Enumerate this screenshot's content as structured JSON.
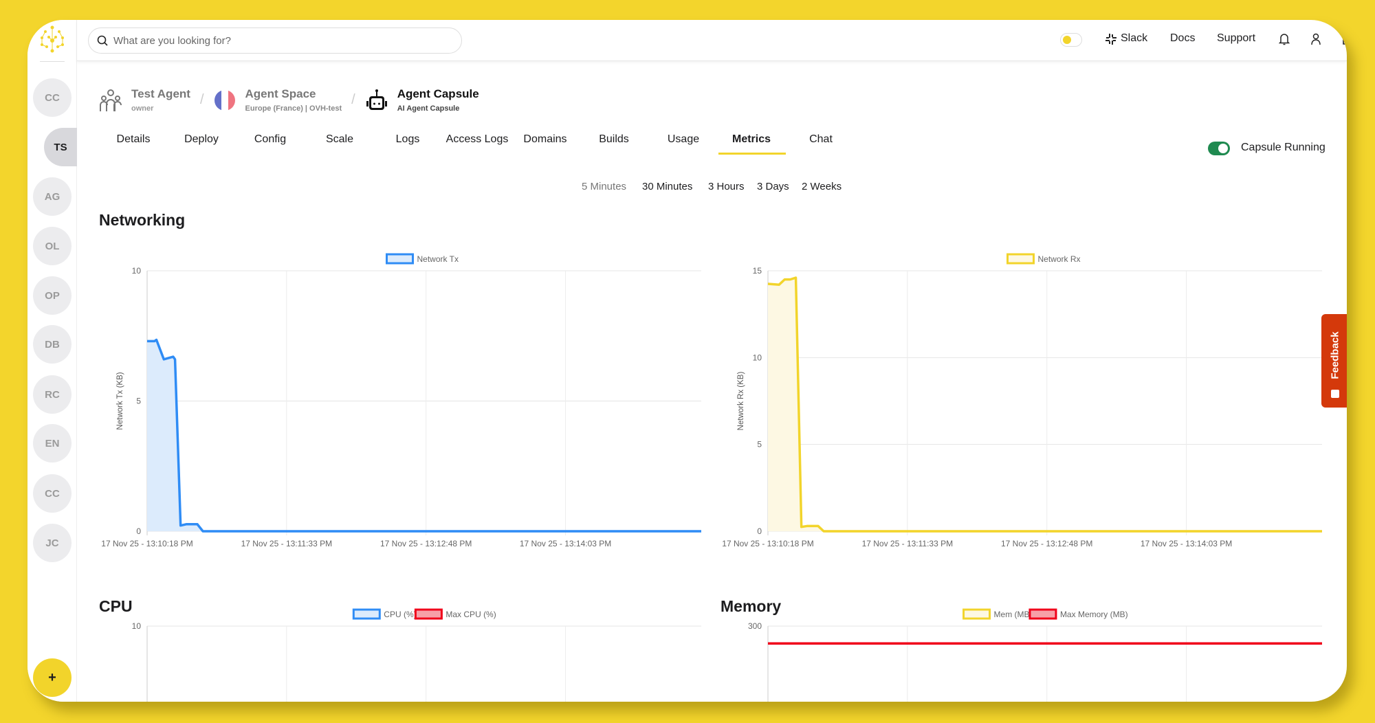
{
  "colors": {
    "background": "#f3d52c",
    "accent": "#f2d42b",
    "running": "#1f8a50",
    "feedback": "#d4390b",
    "tx": "#2f8cf5",
    "tx_fill": "#dcebfc",
    "rx": "#f2d42b",
    "rx_fill": "#fdf8e3",
    "max": "#f0001a",
    "max_fill": "#f7a0a8"
  },
  "search": {
    "placeholder": "What are you looking for?"
  },
  "topbar": {
    "slack": "Slack",
    "docs": "Docs",
    "support": "Support",
    "theme_toggle": "light"
  },
  "sidebar": {
    "avatars": [
      "CC",
      "TS",
      "AG",
      "OL",
      "OP",
      "DB",
      "RC",
      "EN",
      "CC",
      "JC"
    ],
    "active": "TS",
    "add": "+"
  },
  "breadcrumb": {
    "org": {
      "title": "Test Agent",
      "sub": "owner"
    },
    "space": {
      "title": "Agent Space",
      "sub": "Europe (France) | OVH-test"
    },
    "capsule": {
      "title": "Agent Capsule",
      "sub": "AI Agent Capsule"
    }
  },
  "tabs": [
    "Details",
    "Deploy",
    "Config",
    "Scale",
    "Logs",
    "Access Logs",
    "Domains",
    "Builds",
    "Usage",
    "Metrics",
    "Chat"
  ],
  "active_tab": "Metrics",
  "status": {
    "label": "Capsule Running",
    "on": true
  },
  "ranges": [
    "5 Minutes",
    "30 Minutes",
    "3 Hours",
    "3 Days",
    "2 Weeks"
  ],
  "sections": {
    "networking": "Networking",
    "cpu": "CPU",
    "memory": "Memory"
  },
  "feedback": "Feedback",
  "chart_data": [
    {
      "type": "area",
      "ylabel": "Network Tx (KB)",
      "ylim": [
        0,
        10
      ],
      "yticks": [
        0,
        5,
        10
      ],
      "xlim": [
        "13:10:18",
        "13:15:16"
      ],
      "xticks": [
        {
          "t": "13:10:18",
          "label": "17 Nov 25 - 13:10:18 PM"
        },
        {
          "t": "13:11:33",
          "label": "17 Nov 25 - 13:11:33 PM"
        },
        {
          "t": "13:12:48",
          "label": "17 Nov 25 - 13:12:48 PM"
        },
        {
          "t": "13:14:03",
          "label": "17 Nov 25 - 13:14:03 PM"
        }
      ],
      "grid": true,
      "legend": "top",
      "series": [
        {
          "name": "Network Tx",
          "color": "#2f8cf5",
          "fill": "#dcebfc",
          "points": [
            [
              "13:10:18",
              7.3
            ],
            [
              "13:10:22",
              7.3
            ],
            [
              "13:10:23",
              7.35
            ],
            [
              "13:10:27",
              6.6
            ],
            [
              "13:10:32",
              6.7
            ],
            [
              "13:10:33",
              6.6
            ],
            [
              "13:10:36",
              0.22
            ],
            [
              "13:10:39",
              0.27
            ],
            [
              "13:10:45",
              0.27
            ],
            [
              "13:10:48",
              0
            ],
            [
              "13:15:16",
              0
            ]
          ]
        }
      ]
    },
    {
      "type": "area",
      "ylabel": "Network Rx (KB)",
      "ylim": [
        0,
        15
      ],
      "yticks": [
        0,
        5,
        10,
        15
      ],
      "xlim": [
        "13:10:18",
        "13:15:16"
      ],
      "xticks": [
        {
          "t": "13:10:18",
          "label": "17 Nov 25 - 13:10:18 PM"
        },
        {
          "t": "13:11:33",
          "label": "17 Nov 25 - 13:11:33 PM"
        },
        {
          "t": "13:12:48",
          "label": "17 Nov 25 - 13:12:48 PM"
        },
        {
          "t": "13:14:03",
          "label": "17 Nov 25 - 13:14:03 PM"
        }
      ],
      "grid": true,
      "legend": "top",
      "series": [
        {
          "name": "Network Rx",
          "color": "#f2d42b",
          "fill": "#fdf8e3",
          "points": [
            [
              "13:10:18",
              14.25
            ],
            [
              "13:10:24",
              14.2
            ],
            [
              "13:10:27",
              14.5
            ],
            [
              "13:10:30",
              14.5
            ],
            [
              "13:10:33",
              14.6
            ],
            [
              "13:10:36",
              0.25
            ],
            [
              "13:10:39",
              0.3
            ],
            [
              "13:10:45",
              0.3
            ],
            [
              "13:10:48",
              0
            ],
            [
              "13:15:16",
              0
            ]
          ]
        }
      ]
    },
    {
      "type": "line",
      "ylim": [
        0,
        10
      ],
      "yticks": [
        10
      ],
      "xlim": [
        "13:10:18",
        "13:15:16"
      ],
      "xticks": [
        {
          "t": "13:10:18",
          "label": ""
        },
        {
          "t": "13:11:33",
          "label": ""
        },
        {
          "t": "13:12:48",
          "label": ""
        },
        {
          "t": "13:14:03",
          "label": ""
        }
      ],
      "grid": true,
      "legend": "top",
      "series": [
        {
          "name": "CPU (%)",
          "color": "#2f8cf5",
          "fill": "#dcebfc",
          "points": []
        },
        {
          "name": "Max CPU (%)",
          "color": "#f0001a",
          "fill": "#f7a0a8",
          "points": []
        }
      ]
    },
    {
      "type": "line",
      "ylim": [
        0,
        300
      ],
      "yticks": [
        300
      ],
      "xlim": [
        "13:10:18",
        "13:15:16"
      ],
      "xticks": [
        {
          "t": "13:10:18",
          "label": ""
        },
        {
          "t": "13:11:33",
          "label": ""
        },
        {
          "t": "13:12:48",
          "label": ""
        },
        {
          "t": "13:14:03",
          "label": ""
        }
      ],
      "grid": true,
      "legend": "top",
      "series": [
        {
          "name": "Mem (MB)",
          "color": "#f2d42b",
          "fill": "#fdf8e3",
          "points": []
        },
        {
          "name": "Max Memory (MB)",
          "color": "#f0001a",
          "fill": "#f7a0a8",
          "points": [
            [
              "13:10:18",
              280
            ],
            [
              "13:15:16",
              280
            ]
          ]
        }
      ]
    }
  ]
}
